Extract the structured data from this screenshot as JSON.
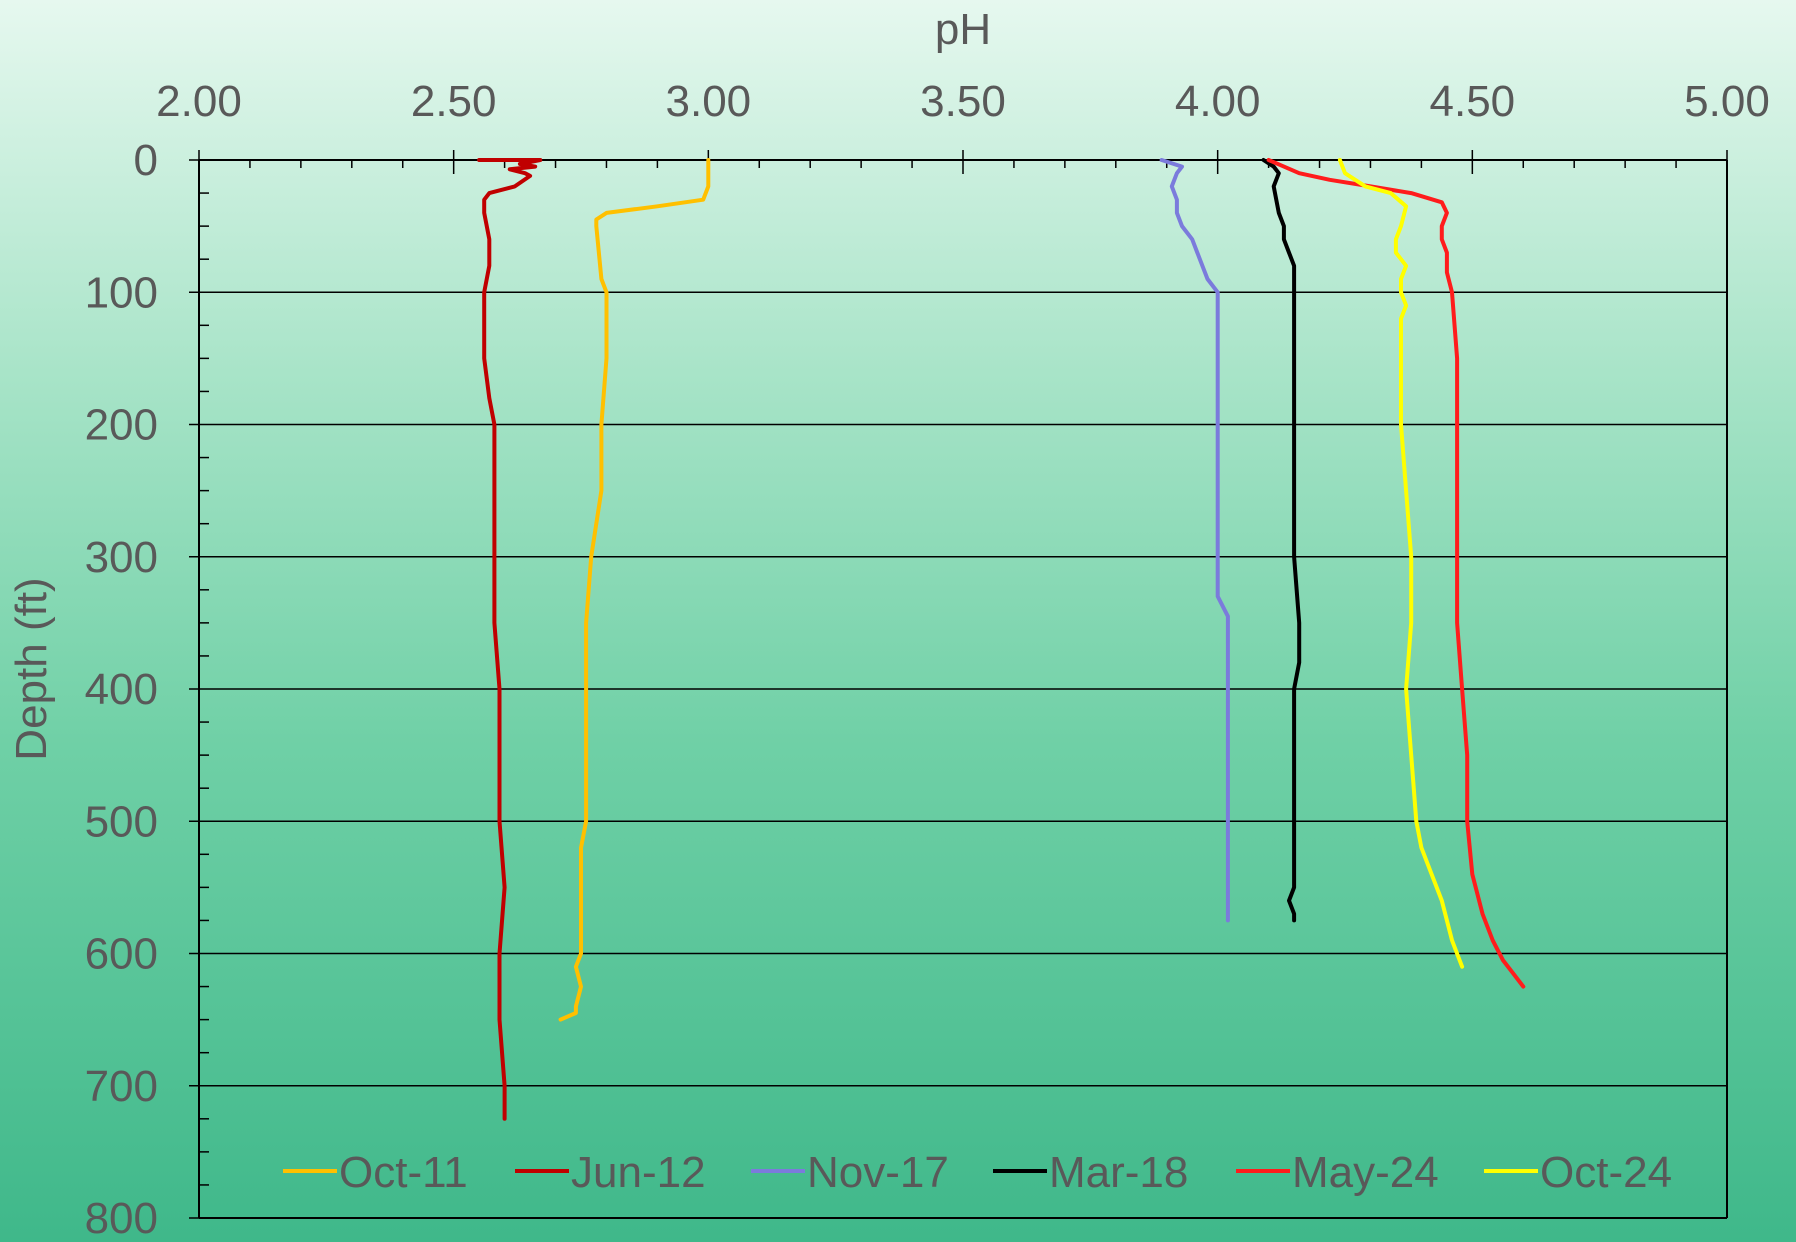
{
  "chart_data": {
    "type": "line",
    "title": "",
    "xlabel": "pH",
    "ylabel": "Depth (ft)",
    "x_axis_position": "top",
    "y_axis_reversed": true,
    "xlim": [
      2.0,
      5.0
    ],
    "ylim": [
      0,
      800
    ],
    "x_ticks": [
      "2.00",
      "2.50",
      "3.00",
      "3.50",
      "4.00",
      "4.50",
      "5.00"
    ],
    "y_ticks": [
      "0",
      "100",
      "200",
      "300",
      "400",
      "500",
      "600",
      "700",
      "800"
    ],
    "grid": "horizontal major gridlines",
    "legend_position": "bottom-inside",
    "series": [
      {
        "name": "Oct-11",
        "color": "#ffc000",
        "points": [
          [
            3.0,
            0
          ],
          [
            3.0,
            20
          ],
          [
            2.99,
            30
          ],
          [
            2.9,
            35
          ],
          [
            2.8,
            40
          ],
          [
            2.78,
            45
          ],
          [
            2.78,
            50
          ],
          [
            2.79,
            90
          ],
          [
            2.8,
            100
          ],
          [
            2.8,
            150
          ],
          [
            2.79,
            200
          ],
          [
            2.79,
            250
          ],
          [
            2.77,
            300
          ],
          [
            2.76,
            350
          ],
          [
            2.76,
            400
          ],
          [
            2.76,
            450
          ],
          [
            2.76,
            500
          ],
          [
            2.75,
            520
          ],
          [
            2.75,
            600
          ],
          [
            2.74,
            610
          ],
          [
            2.75,
            625
          ],
          [
            2.74,
            640
          ],
          [
            2.74,
            645
          ],
          [
            2.71,
            650
          ]
        ]
      },
      {
        "name": "Jun-12",
        "color": "#c00000",
        "points": [
          [
            2.55,
            0
          ],
          [
            2.67,
            0
          ],
          [
            2.63,
            3
          ],
          [
            2.66,
            5
          ],
          [
            2.61,
            7
          ],
          [
            2.64,
            10
          ],
          [
            2.65,
            12
          ],
          [
            2.62,
            20
          ],
          [
            2.57,
            25
          ],
          [
            2.56,
            30
          ],
          [
            2.56,
            40
          ],
          [
            2.57,
            60
          ],
          [
            2.57,
            80
          ],
          [
            2.56,
            100
          ],
          [
            2.56,
            150
          ],
          [
            2.57,
            180
          ],
          [
            2.58,
            200
          ],
          [
            2.58,
            250
          ],
          [
            2.58,
            300
          ],
          [
            2.58,
            350
          ],
          [
            2.59,
            400
          ],
          [
            2.59,
            500
          ],
          [
            2.6,
            550
          ],
          [
            2.59,
            600
          ],
          [
            2.59,
            650
          ],
          [
            2.6,
            700
          ],
          [
            2.6,
            725
          ]
        ]
      },
      {
        "name": "Nov-17",
        "color": "#7b7bdc",
        "points": [
          [
            3.89,
            0
          ],
          [
            3.93,
            5
          ],
          [
            3.92,
            10
          ],
          [
            3.91,
            20
          ],
          [
            3.92,
            30
          ],
          [
            3.92,
            40
          ],
          [
            3.93,
            50
          ],
          [
            3.95,
            60
          ],
          [
            3.96,
            70
          ],
          [
            3.97,
            80
          ],
          [
            3.98,
            90
          ],
          [
            4.0,
            100
          ],
          [
            4.0,
            120
          ],
          [
            4.0,
            150
          ],
          [
            4.0,
            200
          ],
          [
            4.0,
            250
          ],
          [
            4.0,
            300
          ],
          [
            4.0,
            330
          ],
          [
            4.02,
            345
          ],
          [
            4.02,
            360
          ],
          [
            4.02,
            400
          ],
          [
            4.02,
            450
          ],
          [
            4.02,
            500
          ],
          [
            4.02,
            550
          ],
          [
            4.02,
            575
          ]
        ]
      },
      {
        "name": "Mar-18",
        "color": "#000000",
        "points": [
          [
            4.09,
            0
          ],
          [
            4.11,
            5
          ],
          [
            4.12,
            10
          ],
          [
            4.11,
            20
          ],
          [
            4.12,
            40
          ],
          [
            4.13,
            50
          ],
          [
            4.13,
            60
          ],
          [
            4.14,
            70
          ],
          [
            4.15,
            80
          ],
          [
            4.15,
            100
          ],
          [
            4.15,
            150
          ],
          [
            4.15,
            200
          ],
          [
            4.15,
            250
          ],
          [
            4.15,
            300
          ],
          [
            4.16,
            350
          ],
          [
            4.16,
            380
          ],
          [
            4.15,
            400
          ],
          [
            4.15,
            450
          ],
          [
            4.15,
            500
          ],
          [
            4.15,
            550
          ],
          [
            4.14,
            560
          ],
          [
            4.15,
            570
          ],
          [
            4.15,
            575
          ]
        ]
      },
      {
        "name": "May-24",
        "color": "#ff1c1c",
        "points": [
          [
            4.1,
            0
          ],
          [
            4.13,
            5
          ],
          [
            4.16,
            10
          ],
          [
            4.22,
            15
          ],
          [
            4.3,
            20
          ],
          [
            4.38,
            25
          ],
          [
            4.44,
            32
          ],
          [
            4.45,
            40
          ],
          [
            4.44,
            50
          ],
          [
            4.44,
            60
          ],
          [
            4.45,
            70
          ],
          [
            4.45,
            85
          ],
          [
            4.46,
            100
          ],
          [
            4.47,
            150
          ],
          [
            4.47,
            200
          ],
          [
            4.47,
            250
          ],
          [
            4.47,
            300
          ],
          [
            4.47,
            350
          ],
          [
            4.48,
            400
          ],
          [
            4.49,
            450
          ],
          [
            4.49,
            500
          ],
          [
            4.5,
            540
          ],
          [
            4.52,
            570
          ],
          [
            4.54,
            590
          ],
          [
            4.56,
            605
          ],
          [
            4.58,
            615
          ],
          [
            4.6,
            625
          ]
        ]
      },
      {
        "name": "Oct-24",
        "color": "#ffff00",
        "points": [
          [
            4.24,
            0
          ],
          [
            4.25,
            10
          ],
          [
            4.29,
            20
          ],
          [
            4.34,
            25
          ],
          [
            4.37,
            35
          ],
          [
            4.36,
            50
          ],
          [
            4.35,
            60
          ],
          [
            4.35,
            70
          ],
          [
            4.37,
            80
          ],
          [
            4.36,
            90
          ],
          [
            4.36,
            100
          ],
          [
            4.37,
            110
          ],
          [
            4.36,
            120
          ],
          [
            4.36,
            150
          ],
          [
            4.36,
            200
          ],
          [
            4.37,
            250
          ],
          [
            4.38,
            300
          ],
          [
            4.38,
            350
          ],
          [
            4.37,
            400
          ],
          [
            4.38,
            450
          ],
          [
            4.39,
            500
          ],
          [
            4.4,
            520
          ],
          [
            4.42,
            540
          ],
          [
            4.44,
            560
          ],
          [
            4.46,
            590
          ],
          [
            4.48,
            610
          ]
        ]
      }
    ]
  }
}
